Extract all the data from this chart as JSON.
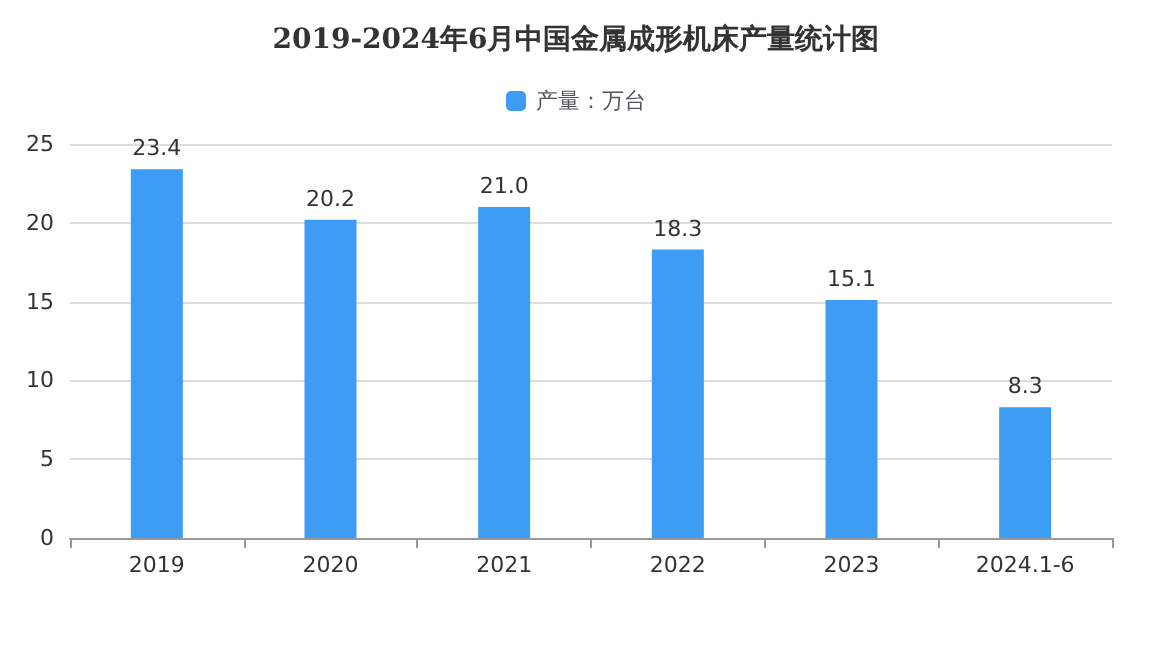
{
  "chart_data": {
    "type": "bar",
    "title": "2019-2024年6月中国金属成形机床产量统计图",
    "categories": [
      "2019",
      "2020",
      "2021",
      "2022",
      "2023",
      "2024.1-6"
    ],
    "series": [
      {
        "name": "产量：万台",
        "color": "#3d9cf3",
        "values": [
          23.4,
          20.2,
          21.0,
          18.3,
          15.1,
          8.3
        ]
      }
    ],
    "value_labels": [
      "23.4",
      "20.2",
      "21.0",
      "18.3",
      "15.1",
      "8.3"
    ],
    "ylim": [
      0,
      25
    ],
    "yticks": [
      0,
      5,
      10,
      15,
      20,
      25
    ],
    "grid": "y",
    "legend": "top"
  }
}
